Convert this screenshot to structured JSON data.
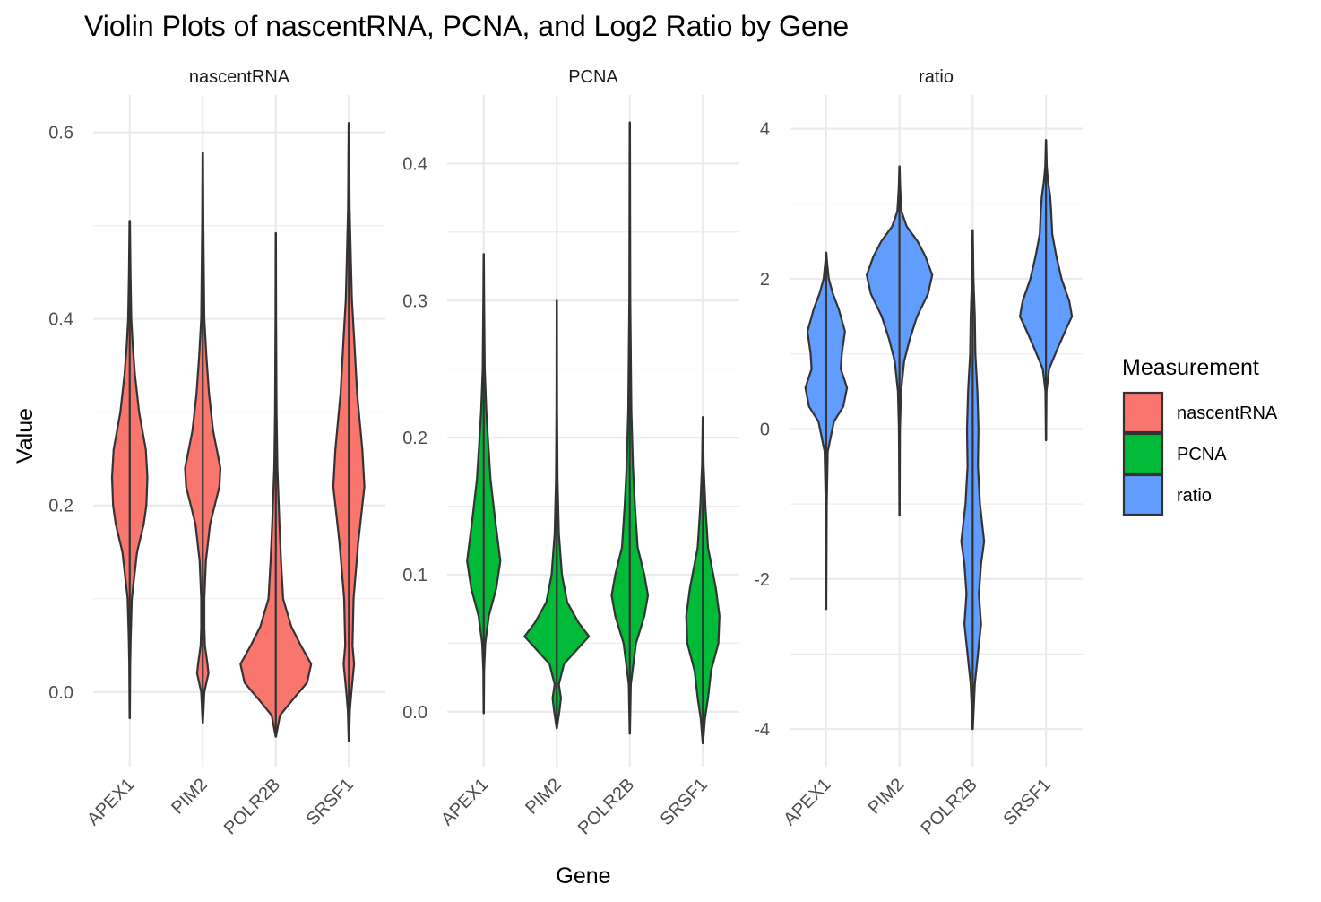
{
  "chart_data": {
    "type": "violin",
    "title": "Violin Plots of nascentRNA, PCNA, and Log2 Ratio by Gene",
    "xlabel": "Gene",
    "ylabel": "Value",
    "categories": [
      "APEX1",
      "PIM2",
      "POLR2B",
      "SRSF1"
    ],
    "legend": {
      "title": "Measurement",
      "placement": "right",
      "entries": [
        {
          "name": "nascentRNA",
          "color": "#F8766D"
        },
        {
          "name": "PCNA",
          "color": "#00BA38"
        },
        {
          "name": "ratio",
          "color": "#619CFF"
        }
      ]
    },
    "grid": true,
    "panels": [
      {
        "name": "nascentRNA",
        "color": "#F8766D",
        "ylim": [
          -0.08,
          0.64
        ],
        "yticks": [
          0.0,
          0.2,
          0.4,
          0.6
        ],
        "tick_labels": [
          "0.0",
          "0.2",
          "0.4",
          "0.6"
        ],
        "violins": [
          {
            "gene": "APEX1",
            "min": -0.028,
            "max": 0.505,
            "profile": [
              [
                -0.028,
                0.002
              ],
              [
                0.0,
                0.006
              ],
              [
                0.03,
                0.01
              ],
              [
                0.06,
                0.02
              ],
              [
                0.1,
                0.04
              ],
              [
                0.15,
                0.14
              ],
              [
                0.18,
                0.27
              ],
              [
                0.2,
                0.32
              ],
              [
                0.23,
                0.34
              ],
              [
                0.26,
                0.31
              ],
              [
                0.3,
                0.18
              ],
              [
                0.34,
                0.1
              ],
              [
                0.37,
                0.06
              ],
              [
                0.4,
                0.03
              ],
              [
                0.45,
                0.015
              ],
              [
                0.505,
                0.004
              ]
            ]
          },
          {
            "gene": "PIM2",
            "min": -0.033,
            "max": 0.578,
            "profile": [
              [
                -0.033,
                0.003
              ],
              [
                0.0,
                0.03
              ],
              [
                0.02,
                0.11
              ],
              [
                0.03,
                0.09
              ],
              [
                0.05,
                0.04
              ],
              [
                0.07,
                0.03
              ],
              [
                0.1,
                0.03
              ],
              [
                0.14,
                0.06
              ],
              [
                0.18,
                0.14
              ],
              [
                0.22,
                0.32
              ],
              [
                0.24,
                0.34
              ],
              [
                0.28,
                0.2
              ],
              [
                0.32,
                0.12
              ],
              [
                0.36,
                0.07
              ],
              [
                0.4,
                0.03
              ],
              [
                0.5,
                0.012
              ],
              [
                0.578,
                0.004
              ]
            ]
          },
          {
            "gene": "POLR2B",
            "min": -0.048,
            "max": 0.492,
            "profile": [
              [
                -0.048,
                0.003
              ],
              [
                -0.025,
                0.08
              ],
              [
                -0.01,
                0.3
              ],
              [
                0.01,
                0.6
              ],
              [
                0.03,
                0.68
              ],
              [
                0.05,
                0.48
              ],
              [
                0.07,
                0.3
              ],
              [
                0.1,
                0.14
              ],
              [
                0.14,
                0.1
              ],
              [
                0.18,
                0.07
              ],
              [
                0.24,
                0.03
              ],
              [
                0.3,
                0.015
              ],
              [
                0.4,
                0.006
              ],
              [
                0.492,
                0.003
              ]
            ]
          },
          {
            "gene": "SRSF1",
            "min": -0.053,
            "max": 0.61,
            "profile": [
              [
                -0.053,
                0.003
              ],
              [
                -0.02,
                0.02
              ],
              [
                0.0,
                0.05
              ],
              [
                0.03,
                0.1
              ],
              [
                0.05,
                0.07
              ],
              [
                0.1,
                0.09
              ],
              [
                0.16,
                0.18
              ],
              [
                0.22,
                0.3
              ],
              [
                0.26,
                0.26
              ],
              [
                0.32,
                0.16
              ],
              [
                0.38,
                0.1
              ],
              [
                0.42,
                0.06
              ],
              [
                0.46,
                0.04
              ],
              [
                0.52,
                0.015
              ],
              [
                0.61,
                0.004
              ]
            ]
          }
        ]
      },
      {
        "name": "PCNA",
        "color": "#00BA38",
        "ylim": [
          -0.04,
          0.45
        ],
        "yticks": [
          0.0,
          0.1,
          0.2,
          0.3,
          0.4
        ],
        "tick_labels": [
          "0.0",
          "0.1",
          "0.2",
          "0.3",
          "0.4"
        ],
        "violins": [
          {
            "gene": "APEX1",
            "min": -0.001,
            "max": 0.334,
            "profile": [
              [
                -0.001,
                0.003
              ],
              [
                0.03,
                0.008
              ],
              [
                0.05,
                0.03
              ],
              [
                0.07,
                0.1
              ],
              [
                0.09,
                0.24
              ],
              [
                0.11,
                0.32
              ],
              [
                0.14,
                0.22
              ],
              [
                0.17,
                0.13
              ],
              [
                0.2,
                0.08
              ],
              [
                0.22,
                0.05
              ],
              [
                0.25,
                0.02
              ],
              [
                0.3,
                0.008
              ],
              [
                0.334,
                0.003
              ]
            ]
          },
          {
            "gene": "PIM2",
            "min": -0.012,
            "max": 0.3,
            "profile": [
              [
                -0.012,
                0.003
              ],
              [
                0.0,
                0.05
              ],
              [
                0.01,
                0.08
              ],
              [
                0.02,
                0.04
              ],
              [
                0.035,
                0.14
              ],
              [
                0.045,
                0.38
              ],
              [
                0.055,
                0.62
              ],
              [
                0.065,
                0.42
              ],
              [
                0.08,
                0.2
              ],
              [
                0.1,
                0.1
              ],
              [
                0.13,
                0.04
              ],
              [
                0.17,
                0.015
              ],
              [
                0.22,
                0.006
              ],
              [
                0.3,
                0.003
              ]
            ]
          },
          {
            "gene": "POLR2B",
            "min": -0.016,
            "max": 0.43,
            "profile": [
              [
                -0.016,
                0.003
              ],
              [
                0.02,
                0.02
              ],
              [
                0.05,
                0.12
              ],
              [
                0.07,
                0.28
              ],
              [
                0.085,
                0.35
              ],
              [
                0.1,
                0.28
              ],
              [
                0.12,
                0.15
              ],
              [
                0.15,
                0.1
              ],
              [
                0.18,
                0.06
              ],
              [
                0.22,
                0.03
              ],
              [
                0.3,
                0.01
              ],
              [
                0.43,
                0.003
              ]
            ]
          },
          {
            "gene": "SRSF1",
            "min": -0.023,
            "max": 0.215,
            "profile": [
              [
                -0.023,
                0.003
              ],
              [
                -0.005,
                0.04
              ],
              [
                0.01,
                0.1
              ],
              [
                0.03,
                0.16
              ],
              [
                0.05,
                0.3
              ],
              [
                0.07,
                0.32
              ],
              [
                0.09,
                0.25
              ],
              [
                0.12,
                0.1
              ],
              [
                0.15,
                0.05
              ],
              [
                0.18,
                0.015
              ],
              [
                0.215,
                0.003
              ]
            ]
          }
        ]
      },
      {
        "name": "ratio",
        "color": "#619CFF",
        "ylim": [
          -4.5,
          4.45
        ],
        "yticks": [
          -4,
          -2,
          0,
          2,
          4
        ],
        "tick_labels": [
          "-4",
          "-2",
          "0",
          "2",
          "4"
        ],
        "violins": [
          {
            "gene": "APEX1",
            "min": -2.4,
            "max": 2.35,
            "profile": [
              [
                -2.4,
                0.003
              ],
              [
                -1.0,
                0.01
              ],
              [
                -0.3,
                0.03
              ],
              [
                0.1,
                0.15
              ],
              [
                0.3,
                0.33
              ],
              [
                0.55,
                0.4
              ],
              [
                0.8,
                0.28
              ],
              [
                1.0,
                0.3
              ],
              [
                1.3,
                0.36
              ],
              [
                1.6,
                0.24
              ],
              [
                1.8,
                0.13
              ],
              [
                2.0,
                0.05
              ],
              [
                2.2,
                0.02
              ],
              [
                2.35,
                0.003
              ]
            ]
          },
          {
            "gene": "PIM2",
            "min": -1.15,
            "max": 3.5,
            "profile": [
              [
                -1.15,
                0.003
              ],
              [
                0.0,
                0.01
              ],
              [
                0.5,
                0.03
              ],
              [
                0.9,
                0.09
              ],
              [
                1.2,
                0.2
              ],
              [
                1.5,
                0.34
              ],
              [
                1.8,
                0.55
              ],
              [
                2.05,
                0.63
              ],
              [
                2.3,
                0.5
              ],
              [
                2.5,
                0.35
              ],
              [
                2.7,
                0.14
              ],
              [
                2.9,
                0.04
              ],
              [
                3.2,
                0.015
              ],
              [
                3.5,
                0.003
              ]
            ]
          },
          {
            "gene": "POLR2B",
            "min": -4.0,
            "max": 2.65,
            "profile": [
              [
                -4.0,
                0.003
              ],
              [
                -3.4,
                0.04
              ],
              [
                -3.0,
                0.1
              ],
              [
                -2.6,
                0.16
              ],
              [
                -2.2,
                0.12
              ],
              [
                -1.8,
                0.16
              ],
              [
                -1.5,
                0.22
              ],
              [
                -1.0,
                0.14
              ],
              [
                -0.5,
                0.1
              ],
              [
                0.0,
                0.11
              ],
              [
                0.5,
                0.09
              ],
              [
                1.0,
                0.05
              ],
              [
                1.5,
                0.04
              ],
              [
                2.0,
                0.015
              ],
              [
                2.65,
                0.003
              ]
            ]
          },
          {
            "gene": "SRSF1",
            "min": -0.15,
            "max": 3.85,
            "profile": [
              [
                -0.15,
                0.003
              ],
              [
                0.5,
                0.01
              ],
              [
                0.8,
                0.06
              ],
              [
                1.1,
                0.24
              ],
              [
                1.35,
                0.4
              ],
              [
                1.5,
                0.5
              ],
              [
                1.7,
                0.45
              ],
              [
                2.0,
                0.3
              ],
              [
                2.3,
                0.2
              ],
              [
                2.6,
                0.12
              ],
              [
                2.9,
                0.1
              ],
              [
                3.1,
                0.08
              ],
              [
                3.3,
                0.04
              ],
              [
                3.5,
                0.015
              ],
              [
                3.85,
                0.003
              ]
            ]
          }
        ]
      }
    ]
  }
}
